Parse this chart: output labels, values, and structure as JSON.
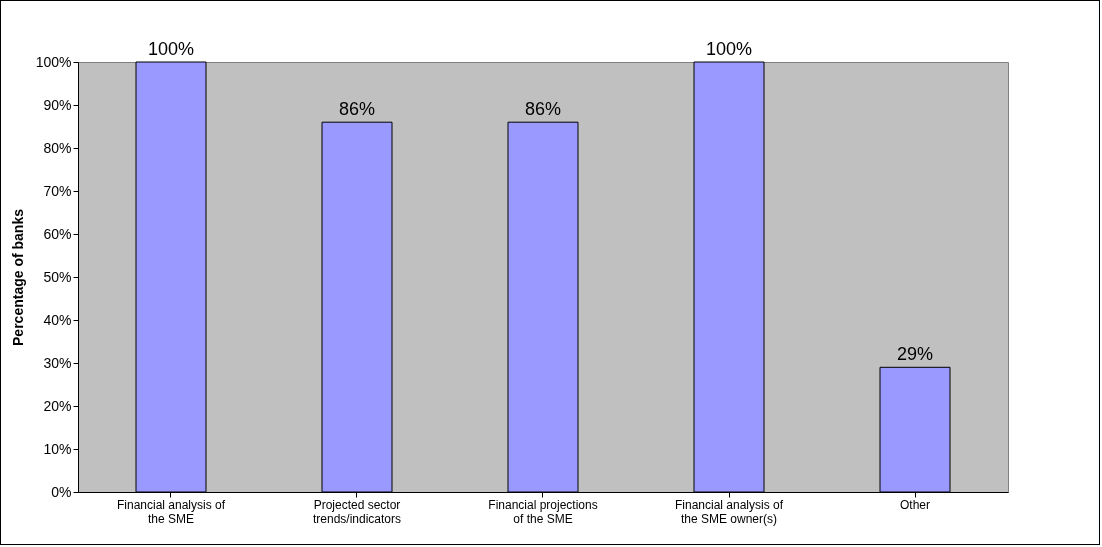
{
  "chart_data": {
    "type": "bar",
    "ylabel": "Percentage of banks",
    "categories": [
      "Financial analysis of the SME",
      "Projected sector trends/indicators",
      "Financial projections of the SME",
      "Financial analysis of the SME owner(s)",
      "Other"
    ],
    "values": [
      100,
      86,
      86,
      100,
      29
    ],
    "color": "#9999ff",
    "value_labels": [
      "100%",
      "86%",
      "86%",
      "100%",
      "29%"
    ],
    "ylim": [
      0,
      100
    ],
    "yticks": [
      {
        "value": 0,
        "label": "0%"
      },
      {
        "value": 10,
        "label": "10%"
      },
      {
        "value": 20,
        "label": "20%"
      },
      {
        "value": 30,
        "label": "30%"
      },
      {
        "value": 40,
        "label": "40%"
      },
      {
        "value": 50,
        "label": "50%"
      },
      {
        "value": 60,
        "label": "60%"
      },
      {
        "value": 70,
        "label": "70%"
      },
      {
        "value": 80,
        "label": "80%"
      },
      {
        "value": 90,
        "label": "90%"
      },
      {
        "value": 100,
        "label": "100%"
      }
    ],
    "grid": false
  }
}
